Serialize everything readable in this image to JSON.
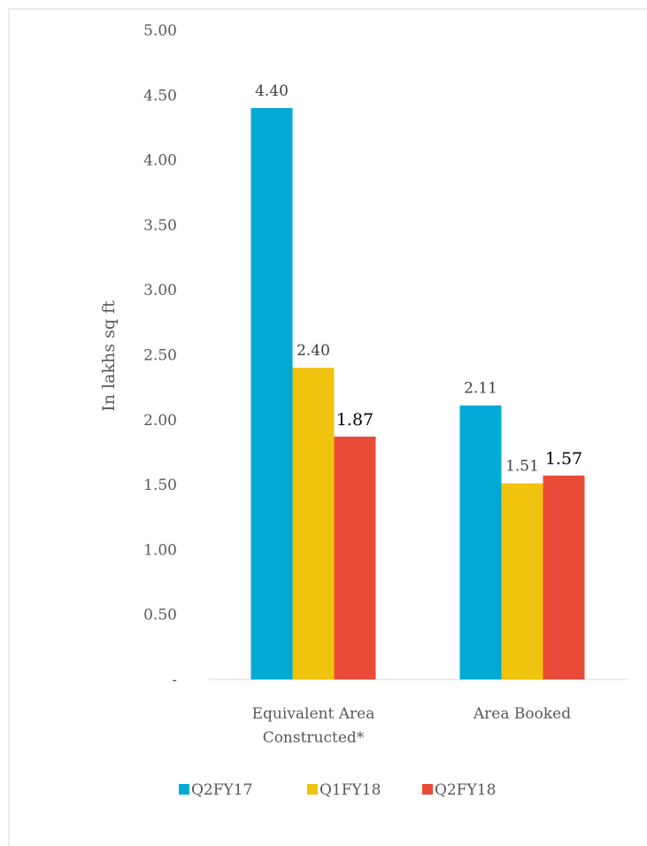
{
  "chart_data": {
    "type": "bar",
    "title": "",
    "xlabel": "",
    "ylabel": "In lakhs sq ft",
    "ylim": [
      0,
      5
    ],
    "y_ticks": [
      "-",
      "0.50",
      "1.00",
      "1.50",
      "2.00",
      "2.50",
      "3.00",
      "3.50",
      "4.00",
      "4.50",
      "5.00"
    ],
    "grid": false,
    "legend_position": "bottom",
    "categories": [
      [
        "Equivalent Area",
        "Constructed*"
      ],
      [
        "Area Booked"
      ]
    ],
    "series": [
      {
        "name": "Q2FY17",
        "color": "#00AAD4",
        "values": [
          4.4,
          2.11
        ],
        "labels": [
          "4.40",
          "2.11"
        ]
      },
      {
        "name": "Q1FY18",
        "color": "#F0C30F",
        "values": [
          2.4,
          1.51
        ],
        "labels": [
          "2.40",
          "1.51"
        ]
      },
      {
        "name": "Q2FY18",
        "color": "#E84C38",
        "values": [
          1.87,
          1.57
        ],
        "labels": [
          "1.87",
          "1.57"
        ]
      }
    ]
  }
}
